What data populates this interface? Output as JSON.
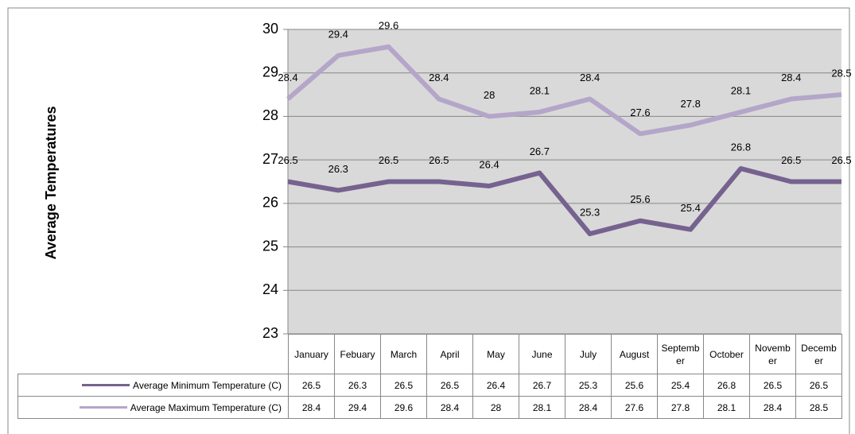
{
  "chart_data": {
    "type": "line",
    "y_axis_label": "Average Temperatures",
    "categories": [
      "January",
      "Febuary",
      "March",
      "April",
      "May",
      "June",
      "July",
      "August",
      "September",
      "October",
      "November",
      "December"
    ],
    "series": [
      {
        "name": "Average Minimum Temperature (C)",
        "color": "#76628f",
        "values": [
          26.5,
          26.3,
          26.5,
          26.5,
          26.4,
          26.7,
          25.3,
          25.6,
          25.4,
          26.8,
          26.5,
          26.5
        ]
      },
      {
        "name": "Average Maximum Temperature (C)",
        "color": "#b4a6c9",
        "values": [
          28.4,
          29.4,
          29.6,
          28.4,
          28,
          28.1,
          28.4,
          27.6,
          27.8,
          28.1,
          28.4,
          28.5
        ]
      }
    ],
    "ylim": [
      23,
      30
    ],
    "yticks": [
      23,
      24,
      25,
      26,
      27,
      28,
      29,
      30
    ],
    "grid": true,
    "data_table": true
  }
}
